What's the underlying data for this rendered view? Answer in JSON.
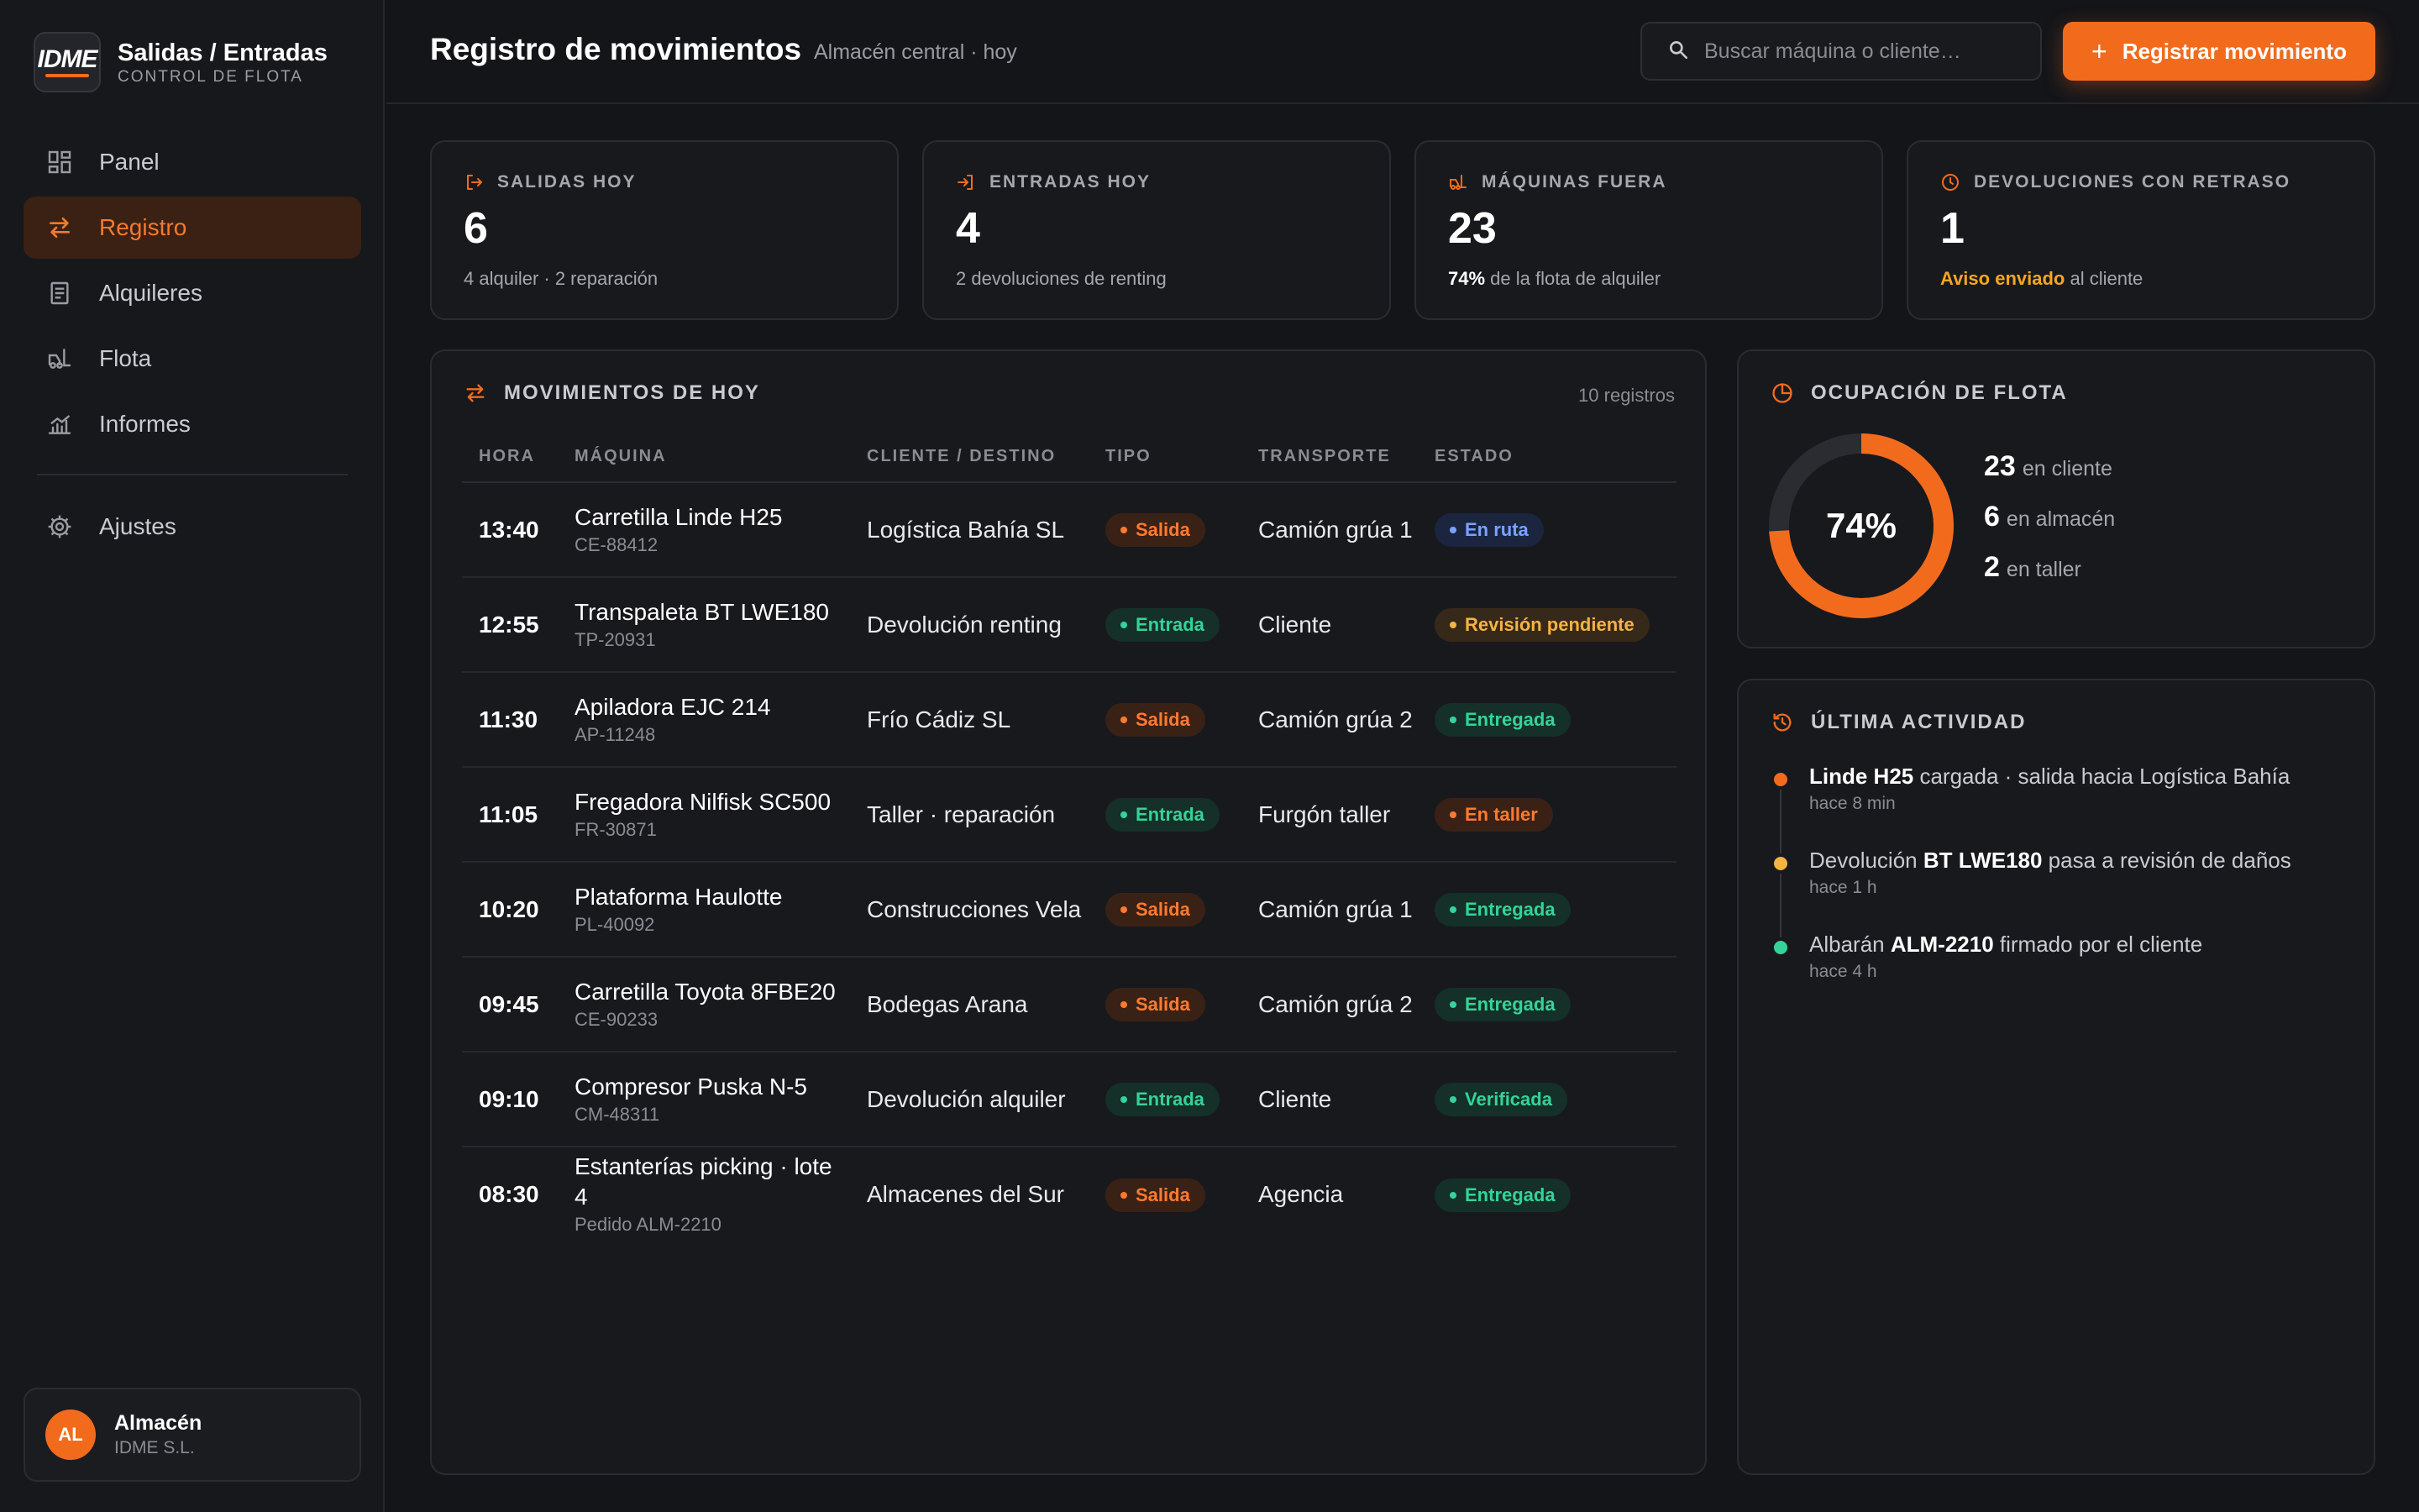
{
  "brand": {
    "logo": "IDME",
    "title": "Salidas / Entradas",
    "subtitle": "CONTROL DE FLOTA"
  },
  "nav": {
    "items": [
      {
        "label": "Panel",
        "icon": "dashboard-icon",
        "active": false
      },
      {
        "label": "Registro",
        "icon": "swap-arrows-icon",
        "active": true
      },
      {
        "label": "Alquileres",
        "icon": "document-icon",
        "active": false
      },
      {
        "label": "Flota",
        "icon": "forklift-icon",
        "active": false
      },
      {
        "label": "Informes",
        "icon": "chart-icon",
        "active": false
      }
    ],
    "settings": {
      "label": "Ajustes",
      "icon": "gear-icon"
    }
  },
  "user": {
    "initials": "AL",
    "name": "Almacén",
    "org": "IDME S.L."
  },
  "header": {
    "title": "Registro de movimientos",
    "subtitle": "Almacén central · hoy",
    "search_placeholder": "Buscar máquina o cliente…",
    "cta_label": "Registrar movimiento"
  },
  "stats": [
    {
      "label": "SALIDAS HOY",
      "icon": "exit-icon",
      "value": "6",
      "note": "4 alquiler · 2 reparación"
    },
    {
      "label": "ENTRADAS HOY",
      "icon": "enter-icon",
      "value": "4",
      "note": "2 devoluciones de renting"
    },
    {
      "label": "MÁQUINAS FUERA",
      "icon": "forklift-icon",
      "value": "23",
      "note_strong": "74%",
      "note_rest": " de la flota de alquiler"
    },
    {
      "label": "DEVOLUCIONES CON RETRASO",
      "icon": "clock-icon",
      "value": "1",
      "note_warn": "Aviso enviado",
      "note_rest": " al cliente"
    }
  ],
  "movements": {
    "title": "MOVIMIENTOS DE HOY",
    "count": "10 registros",
    "columns": [
      "HORA",
      "MÁQUINA",
      "CLIENTE / DESTINO",
      "TIPO",
      "TRANSPORTE",
      "ESTADO"
    ],
    "rows": [
      {
        "time": "13:40",
        "machine": "Carretilla Linde H25",
        "code": "CE-88412",
        "client": "Logística Bahía SL",
        "type": "Salida",
        "transport": "Camión grúa 1",
        "status": "En ruta",
        "status_kind": "blue"
      },
      {
        "time": "12:55",
        "machine": "Transpaleta BT LWE180",
        "code": "TP-20931",
        "client": "Devolución renting",
        "type": "Entrada",
        "transport": "Cliente",
        "status": "Revisión pendiente",
        "status_kind": "amber"
      },
      {
        "time": "11:30",
        "machine": "Apiladora EJC 214",
        "code": "AP-11248",
        "client": "Frío Cádiz SL",
        "type": "Salida",
        "transport": "Camión grúa 2",
        "status": "Entregada",
        "status_kind": "green"
      },
      {
        "time": "11:05",
        "machine": "Fregadora Nilfisk SC500",
        "code": "FR-30871",
        "client": "Taller · reparación",
        "type": "Entrada",
        "transport": "Furgón taller",
        "status": "En taller",
        "status_kind": "orange"
      },
      {
        "time": "10:20",
        "machine": "Plataforma Haulotte",
        "code": "PL-40092",
        "client": "Construcciones Vela",
        "type": "Salida",
        "transport": "Camión grúa 1",
        "status": "Entregada",
        "status_kind": "green"
      },
      {
        "time": "09:45",
        "machine": "Carretilla Toyota 8FBE20",
        "code": "CE-90233",
        "client": "Bodegas Arana",
        "type": "Salida",
        "transport": "Camión grúa 2",
        "status": "Entregada",
        "status_kind": "green"
      },
      {
        "time": "09:10",
        "machine": "Compresor Puska N-5",
        "code": "CM-48311",
        "client": "Devolución alquiler",
        "type": "Entrada",
        "transport": "Cliente",
        "status": "Verificada",
        "status_kind": "green"
      },
      {
        "time": "08:30",
        "machine": "Estanterías picking · lote 4",
        "code": "Pedido ALM-2210",
        "client": "Almacenes del Sur",
        "type": "Salida",
        "transport": "Agencia",
        "status": "Entregada",
        "status_kind": "green"
      }
    ]
  },
  "occupancy": {
    "title": "OCUPACIÓN DE FLOTA",
    "percent_label": "74%",
    "fraction": 0.74,
    "ring_color": "#f26b1d",
    "legend": [
      {
        "num": "23",
        "label": "en cliente"
      },
      {
        "num": "6",
        "label": "en almacén"
      },
      {
        "num": "2",
        "label": "en taller"
      }
    ]
  },
  "activity": {
    "title": "ÚLTIMA ACTIVIDAD",
    "items": [
      {
        "color": "#f26b1d",
        "pre": "",
        "strong": "Linde H25",
        "post": " cargada · salida hacia Logística Bahía",
        "time": "hace 8 min"
      },
      {
        "color": "#f6b342",
        "pre": "Devolución ",
        "strong": "BT LWE180",
        "post": " pasa a revisión de daños",
        "time": "hace 1 h"
      },
      {
        "color": "#34d399",
        "pre": "Albarán ",
        "strong": "ALM-2210",
        "post": " firmado por el cliente",
        "time": "hace 4 h"
      }
    ]
  }
}
